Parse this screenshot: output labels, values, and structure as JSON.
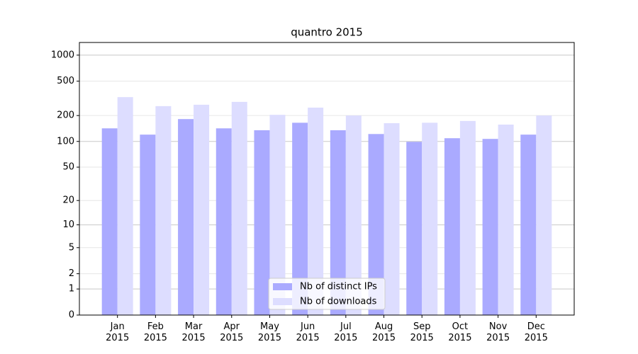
{
  "chart_data": {
    "type": "bar",
    "title": "quantro 2015",
    "categories": [
      "Jan\n2015",
      "Feb\n2015",
      "Mar\n2015",
      "Apr\n2015",
      "May\n2015",
      "Jun\n2015",
      "Jul\n2015",
      "Aug\n2015",
      "Sep\n2015",
      "Oct\n2015",
      "Nov\n2015",
      "Dec\n2015"
    ],
    "series": [
      {
        "name": "Nb of distinct IPs",
        "color": "#aaaaff",
        "values": [
          142,
          120,
          182,
          142,
          135,
          165,
          135,
          122,
          99,
          109,
          107,
          120
        ]
      },
      {
        "name": "Nb of downloads",
        "color": "#ddddff",
        "values": [
          327,
          257,
          267,
          288,
          204,
          247,
          200,
          163,
          165,
          173,
          157,
          200
        ]
      }
    ],
    "yscale": "log1p",
    "ylim": [
      0,
      1400
    ],
    "yticks": [
      0,
      1,
      2,
      5,
      10,
      20,
      50,
      100,
      200,
      500,
      1000
    ],
    "grid": true,
    "legend": "lower center"
  }
}
